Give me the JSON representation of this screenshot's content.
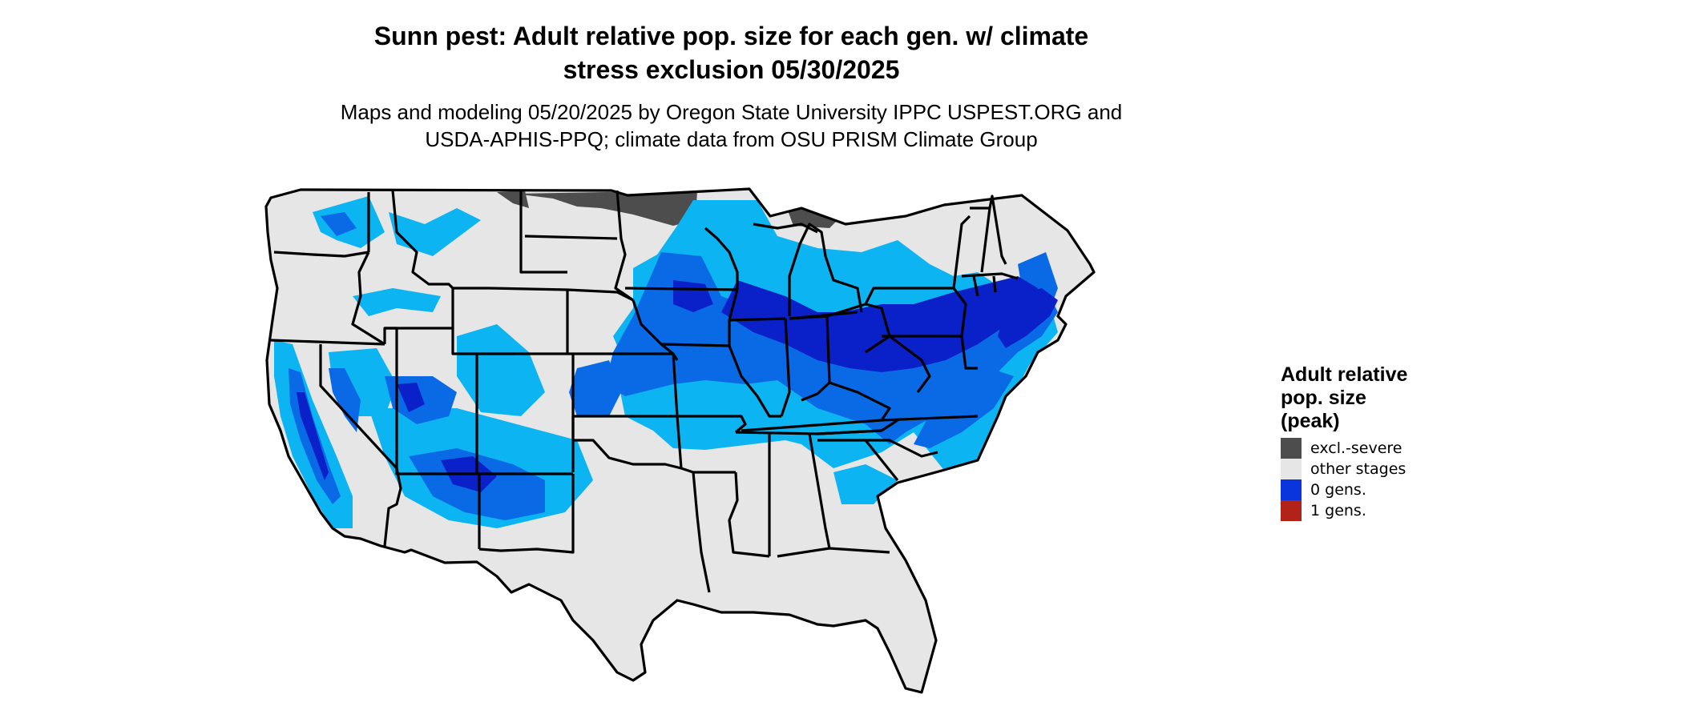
{
  "title_lines": [
    "Sunn pest: Adult relative pop. size for each gen. w/ climate",
    "stress exclusion 05/30/2025"
  ],
  "subtitle_lines": [
    "Maps and modeling 05/20/2025 by Oregon State University IPPC USPEST.ORG and",
    "USDA-APHIS-PPQ; climate data from OSU PRISM Climate Group"
  ],
  "legend": {
    "title_lines": [
      "Adult relative",
      "pop. size",
      "(peak)"
    ],
    "items": [
      {
        "label": "excl.-severe",
        "color": "#4d4d4d"
      },
      {
        "label": "other stages",
        "color": "#e6e6e6"
      },
      {
        "label": "0 gens.",
        "color": "#0a34dc"
      },
      {
        "label": "1 gens.",
        "color": "#b22218"
      }
    ]
  },
  "map_colors": {
    "background_land": "#e6e6e6",
    "excluded": "#4d4d4d",
    "light_blue": "#0cb4f2",
    "mid_blue": "#0a6ae6",
    "deep_blue": "#0a20c8",
    "state_borders": "#000000"
  }
}
